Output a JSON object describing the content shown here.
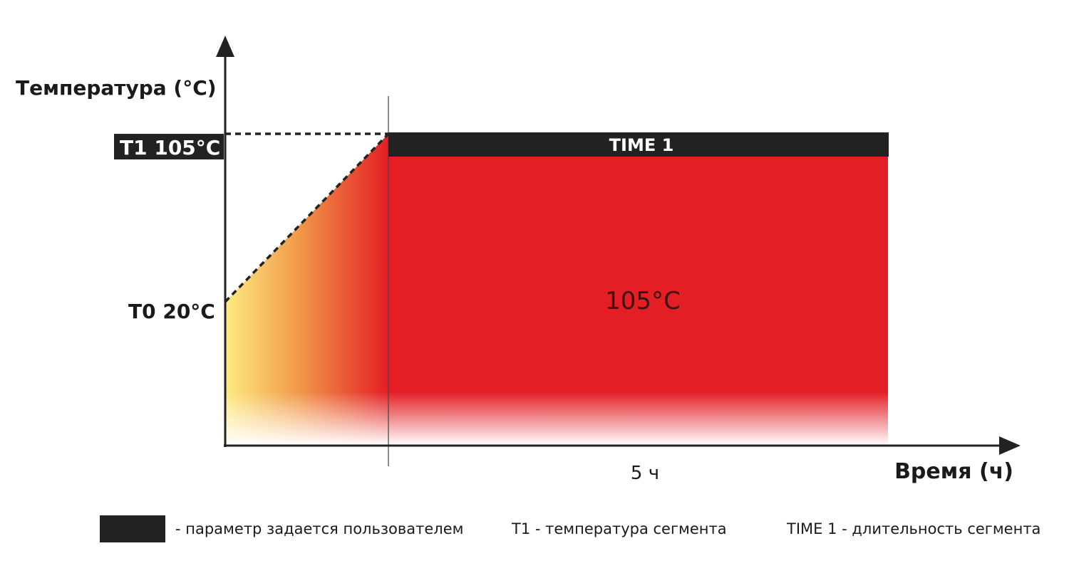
{
  "axes": {
    "y_label": "Температура (°C)",
    "x_label": "Время (ч)"
  },
  "setpoints": {
    "t1_label": "T1 105°C",
    "t0_label": "T0 20°C"
  },
  "segment": {
    "bar_label": "TIME 1",
    "temperature_label": "105°C",
    "duration_label": "5 ч"
  },
  "legend": {
    "user_param": "- параметр задается пользователем",
    "t1_desc": "T1 - температура сегмента",
    "time1_desc": "TIME 1 - длительность сегмента"
  },
  "colors": {
    "fill_red": "#e31e24",
    "ramp_yellow": "#fdeb80",
    "ramp_orange": "#f2994a",
    "param_dark": "#222222",
    "axis": "#222222"
  }
}
